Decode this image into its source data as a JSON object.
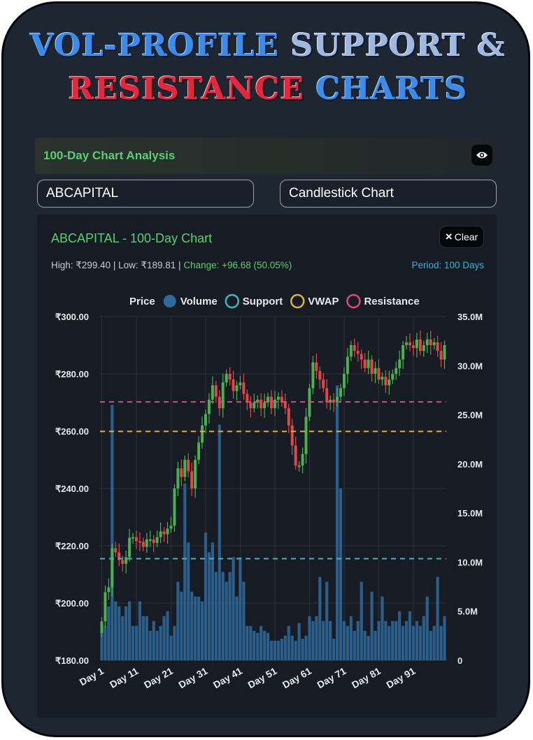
{
  "title": {
    "line1_a": "VOL-PROFILE",
    "line1_b": "SUPPORT &",
    "line2_a": "RESISTANCE",
    "line2_b": "CHARTS"
  },
  "panel": {
    "title": "100-Day Chart Analysis",
    "eye_icon": "eye-icon"
  },
  "inputs": {
    "symbol": "ABCAPITAL",
    "chart_type": "Candlestick Chart"
  },
  "chart_header": {
    "title": "ABCAPITAL - 100-Day Chart",
    "clear_icon": "×",
    "clear_label": "Clear",
    "stats_main": "High: ₹299.40 | Low: ₹189.81 | ",
    "stats_change": "Change: +96.68 (50.05%)",
    "period": "Period: 100 Days"
  },
  "colors": {
    "up": "#4caf50",
    "down": "#e04848",
    "volume": "#2f6a9c",
    "support": "#3fb7c4",
    "vwap": "#e0b040",
    "resistance": "#d94b74",
    "header_green": "#58d06f",
    "period_blue": "#2fb5d6"
  },
  "chart_data": {
    "type": "candlestick",
    "title": "ABCAPITAL - 100-Day Chart",
    "legend_position": "top",
    "grid": true,
    "legend": [
      {
        "name": "Price",
        "marker": "none"
      },
      {
        "name": "Volume",
        "marker": "filled-circle",
        "color": "#2f6a9c"
      },
      {
        "name": "Support",
        "marker": "ring",
        "color": "#3fb7c4"
      },
      {
        "name": "VWAP",
        "marker": "ring",
        "color": "#e0b040"
      },
      {
        "name": "Resistance",
        "marker": "ring",
        "color": "#d94b74"
      }
    ],
    "y_price_ticks": [
      "₹300.00",
      "₹280.00",
      "₹260.00",
      "₹240.00",
      "₹220.00",
      "₹200.00",
      "₹180.00"
    ],
    "y_price_range": [
      180,
      300
    ],
    "y_volume_ticks": [
      "35.0M",
      "30.0M",
      "25.0M",
      "20.0M",
      "15.0M",
      "10.0M",
      "5.0M",
      "0"
    ],
    "y_volume_range": [
      0,
      35
    ],
    "x_ticks": [
      "Day 1",
      "Day 11",
      "Day 21",
      "Day 31",
      "Day 41",
      "Day 51",
      "Day 61",
      "Day 71",
      "Day 81",
      "Day 91"
    ],
    "support": 215.5,
    "vwap": 259.9,
    "resistance": 270.2,
    "close": [
      193.6,
      203.8,
      205.5,
      219.1,
      217.7,
      215.0,
      213.7,
      216.0,
      222.8,
      223.0,
      221.6,
      221.4,
      219.6,
      222.2,
      222.2,
      221.0,
      223.0,
      225.0,
      224.0,
      226.0,
      227.0,
      240.0,
      247.0,
      244.0,
      250.0,
      246.0,
      240.0,
      250.0,
      256.0,
      262.0,
      266.0,
      271.0,
      276.0,
      272.0,
      268.0,
      277.0,
      280.0,
      278.0,
      274.0,
      276.0,
      277.0,
      273.0,
      270.0,
      268.0,
      270.0,
      271.0,
      268.0,
      270.0,
      272.0,
      268.0,
      271.0,
      272.0,
      270.0,
      268.0,
      262.0,
      255.0,
      248.0,
      248.0,
      252.0,
      265.0,
      275.0,
      284.0,
      281.0,
      278.0,
      275.0,
      270.0,
      271.0,
      270.0,
      272.0,
      275.0,
      280.0,
      286.0,
      290.0,
      288.0,
      287.0,
      285.0,
      282.0,
      285.0,
      280.0,
      282.0,
      278.0,
      279.0,
      276.0,
      278.0,
      280.0,
      282.0,
      285.0,
      290.0,
      291.0,
      290.0,
      289.0,
      292.0,
      288.0,
      290.0,
      292.0,
      290.0,
      291.0,
      288.0,
      285.0,
      290.0
    ],
    "volume_millions": [
      3.0,
      3.5,
      5.5,
      26.0,
      6.0,
      5.5,
      4.5,
      5.5,
      6.0,
      3.5,
      3.5,
      6.0,
      4.5,
      4.5,
      3.0,
      4.0,
      3.0,
      3.5,
      4.5,
      5.0,
      2.5,
      3.5,
      8.0,
      7.0,
      18.0,
      12.0,
      7.0,
      6.5,
      6.5,
      6.0,
      13.0,
      11.0,
      12.0,
      9.0,
      24.0,
      9.0,
      8.0,
      9.0,
      10.5,
      6.5,
      10.5,
      8.0,
      3.5,
      3.5,
      3.0,
      2.8,
      3.5,
      3.0,
      2.8,
      2.0,
      2.0,
      2.0,
      2.2,
      2.5,
      3.5,
      2.5,
      2.0,
      3.8,
      2.2,
      2.5,
      4.5,
      4.0,
      4.5,
      8.5,
      4.0,
      8.0,
      4.0,
      2.2,
      28.0,
      17.5,
      4.0,
      3.5,
      4.5,
      3.0,
      4.0,
      8.0,
      3.0,
      2.5,
      7.0,
      3.0,
      4.0,
      6.5,
      4.0,
      3.5,
      4.0,
      4.0,
      5.0,
      3.5,
      4.0,
      5.0,
      3.5,
      4.0,
      3.5,
      4.5,
      6.5,
      3.0,
      3.5,
      8.5,
      3.5,
      4.5
    ]
  }
}
